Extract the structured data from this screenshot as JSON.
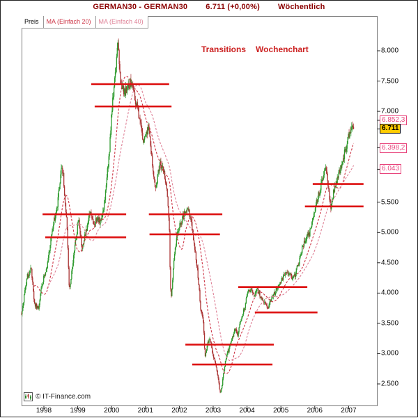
{
  "header": {
    "symbol_title": "GERMAN30 - GERMAN30",
    "price_change": "6.711 (+0,00%)",
    "timeframe": "Wöchentlich",
    "title_color": "#8b0000"
  },
  "watermark": {
    "text": "© IT-Finance.com"
  },
  "chart_data": {
    "type": "candlestick",
    "symbol": "GERMAN30",
    "period": "weekly",
    "last_price": 6711,
    "x_range": [
      1997.34,
      2007.15
    ],
    "ylim": [
      2500,
      8000
    ],
    "grid": false,
    "legend": [
      {
        "label": "Preis",
        "color": "#000000"
      },
      {
        "label": "MA (Einfach 20)",
        "color": "#cc3344"
      },
      {
        "label": "MA (Einfach 40)",
        "color": "#de7f95"
      }
    ],
    "annotations": [
      {
        "text": "Transitions",
        "color": "#cc2222"
      },
      {
        "text": "Wochenchart",
        "color": "#cc2222"
      }
    ],
    "y_ticks": [
      {
        "label": "8.000",
        "value": 8000
      },
      {
        "label": "7.500",
        "value": 7500
      },
      {
        "label": "7.000",
        "value": 7000
      },
      {
        "label": "5.500",
        "value": 5500
      },
      {
        "label": "5.000",
        "value": 5000
      },
      {
        "label": "4.500",
        "value": 4500
      },
      {
        "label": "4.000",
        "value": 4000
      },
      {
        "label": "3.500",
        "value": 3500
      },
      {
        "label": "3.000",
        "value": 3000
      },
      {
        "label": "2.500",
        "value": 2500
      }
    ],
    "special_labels": [
      {
        "label": "6.852,3",
        "value": 6852.3,
        "style": "pink"
      },
      {
        "label": "6.711",
        "value": 6711,
        "style": "current"
      },
      {
        "label": "6.398,2",
        "value": 6398.2,
        "style": "pink"
      },
      {
        "label": "6.043",
        "value": 6043,
        "style": "pink"
      }
    ],
    "x_ticks": [
      {
        "label": "1998",
        "value": 1998
      },
      {
        "label": "1999",
        "value": 1999
      },
      {
        "label": "2000",
        "value": 2000
      },
      {
        "label": "2001",
        "value": 2001
      },
      {
        "label": "2002",
        "value": 2002
      },
      {
        "label": "2003",
        "value": 2003
      },
      {
        "label": "2004",
        "value": 2004
      },
      {
        "label": "2005",
        "value": 2005
      },
      {
        "label": "2006",
        "value": 2006
      },
      {
        "label": "2007",
        "value": 2007
      }
    ],
    "series_anchors": [
      [
        1997.34,
        3650
      ],
      [
        1997.5,
        4250
      ],
      [
        1997.62,
        4420
      ],
      [
        1997.72,
        3820
      ],
      [
        1997.83,
        3730
      ],
      [
        1997.95,
        4150
      ],
      [
        1998.1,
        4480
      ],
      [
        1998.25,
        5050
      ],
      [
        1998.4,
        5450
      ],
      [
        1998.52,
        6120
      ],
      [
        1998.58,
        5900
      ],
      [
        1998.68,
        5100
      ],
      [
        1998.75,
        4050
      ],
      [
        1998.82,
        4350
      ],
      [
        1998.95,
        4900
      ],
      [
        1999.02,
        5250
      ],
      [
        1999.12,
        4750
      ],
      [
        1999.22,
        4950
      ],
      [
        1999.35,
        5350
      ],
      [
        1999.48,
        5150
      ],
      [
        1999.58,
        5250
      ],
      [
        1999.68,
        5150
      ],
      [
        1999.8,
        5550
      ],
      [
        1999.92,
        6250
      ],
      [
        2000.0,
        6950
      ],
      [
        2000.1,
        7600
      ],
      [
        2000.19,
        8100
      ],
      [
        2000.26,
        7500
      ],
      [
        2000.36,
        7300
      ],
      [
        2000.48,
        7400
      ],
      [
        2000.58,
        7480
      ],
      [
        2000.7,
        7200
      ],
      [
        2000.82,
        6900
      ],
      [
        2000.92,
        6500
      ],
      [
        2001.04,
        6600
      ],
      [
        2001.1,
        6750
      ],
      [
        2001.22,
        6050
      ],
      [
        2001.3,
        5700
      ],
      [
        2001.42,
        6150
      ],
      [
        2001.52,
        6050
      ],
      [
        2001.62,
        5750
      ],
      [
        2001.7,
        5150
      ],
      [
        2001.73,
        4250
      ],
      [
        2001.76,
        3900
      ],
      [
        2001.83,
        4500
      ],
      [
        2001.93,
        4950
      ],
      [
        2002.03,
        5150
      ],
      [
        2002.15,
        5300
      ],
      [
        2002.23,
        5400
      ],
      [
        2002.33,
        5250
      ],
      [
        2002.45,
        4750
      ],
      [
        2002.55,
        4300
      ],
      [
        2002.63,
        3750
      ],
      [
        2002.7,
        3600
      ],
      [
        2002.76,
        2950
      ],
      [
        2002.83,
        3150
      ],
      [
        2002.9,
        3250
      ],
      [
        2002.97,
        3050
      ],
      [
        2003.05,
        2850
      ],
      [
        2003.13,
        2650
      ],
      [
        2003.21,
        2330
      ],
      [
        2003.28,
        2550
      ],
      [
        2003.36,
        2900
      ],
      [
        2003.45,
        3050
      ],
      [
        2003.55,
        3250
      ],
      [
        2003.65,
        3400
      ],
      [
        2003.72,
        3300
      ],
      [
        2003.82,
        3550
      ],
      [
        2003.93,
        3750
      ],
      [
        2004.02,
        4000
      ],
      [
        2004.12,
        4050
      ],
      [
        2004.2,
        3950
      ],
      [
        2004.3,
        4080
      ],
      [
        2004.4,
        3950
      ],
      [
        2004.5,
        3850
      ],
      [
        2004.6,
        3750
      ],
      [
        2004.7,
        3900
      ],
      [
        2004.82,
        4000
      ],
      [
        2004.93,
        4150
      ],
      [
        2005.03,
        4250
      ],
      [
        2005.15,
        4300
      ],
      [
        2005.25,
        4350
      ],
      [
        2005.33,
        4200
      ],
      [
        2005.42,
        4300
      ],
      [
        2005.55,
        4550
      ],
      [
        2005.65,
        4800
      ],
      [
        2005.75,
        4900
      ],
      [
        2005.85,
        5000
      ],
      [
        2005.95,
        5250
      ],
      [
        2006.05,
        5500
      ],
      [
        2006.15,
        5700
      ],
      [
        2006.25,
        5900
      ],
      [
        2006.33,
        6080
      ],
      [
        2006.42,
        5650
      ],
      [
        2006.47,
        5400
      ],
      [
        2006.55,
        5650
      ],
      [
        2006.65,
        5850
      ],
      [
        2006.75,
        6050
      ],
      [
        2006.85,
        6250
      ],
      [
        2006.95,
        6450
      ],
      [
        2007.03,
        6650
      ],
      [
        2007.08,
        6750
      ],
      [
        2007.12,
        6850
      ],
      [
        2007.15,
        6711
      ]
    ],
    "moving_averages": [
      {
        "name": "MA (Einfach 20)",
        "period": 20,
        "color": "#cc3344"
      },
      {
        "name": "MA (Einfach 40)",
        "period": 40,
        "color": "#de7f95"
      }
    ],
    "support_resistance_lines": [
      {
        "price": 7450,
        "x1": 1999.4,
        "x2": 2001.7
      },
      {
        "price": 7080,
        "x1": 1999.5,
        "x2": 2001.77
      },
      {
        "price": 5300,
        "x1": 1997.96,
        "x2": 2000.43
      },
      {
        "price": 4920,
        "x1": 1998.04,
        "x2": 2000.43
      },
      {
        "price": 5300,
        "x1": 2001.1,
        "x2": 2003.27
      },
      {
        "price": 4970,
        "x1": 2001.12,
        "x2": 2003.2
      },
      {
        "price": 4100,
        "x1": 2003.74,
        "x2": 2005.78
      },
      {
        "price": 3680,
        "x1": 2004.23,
        "x2": 2006.08
      },
      {
        "price": 3150,
        "x1": 2002.18,
        "x2": 2004.79
      },
      {
        "price": 2820,
        "x1": 2002.38,
        "x2": 2004.75
      },
      {
        "price": 5800,
        "x1": 2005.94,
        "x2": 2007.44
      },
      {
        "price": 5430,
        "x1": 2005.71,
        "x2": 2007.44
      }
    ],
    "colors": {
      "up": "#2c9a2c",
      "down": "#aa3333",
      "line": "#dd1111",
      "current_bg": "#ffcc00",
      "pink": "#e8457c"
    }
  }
}
